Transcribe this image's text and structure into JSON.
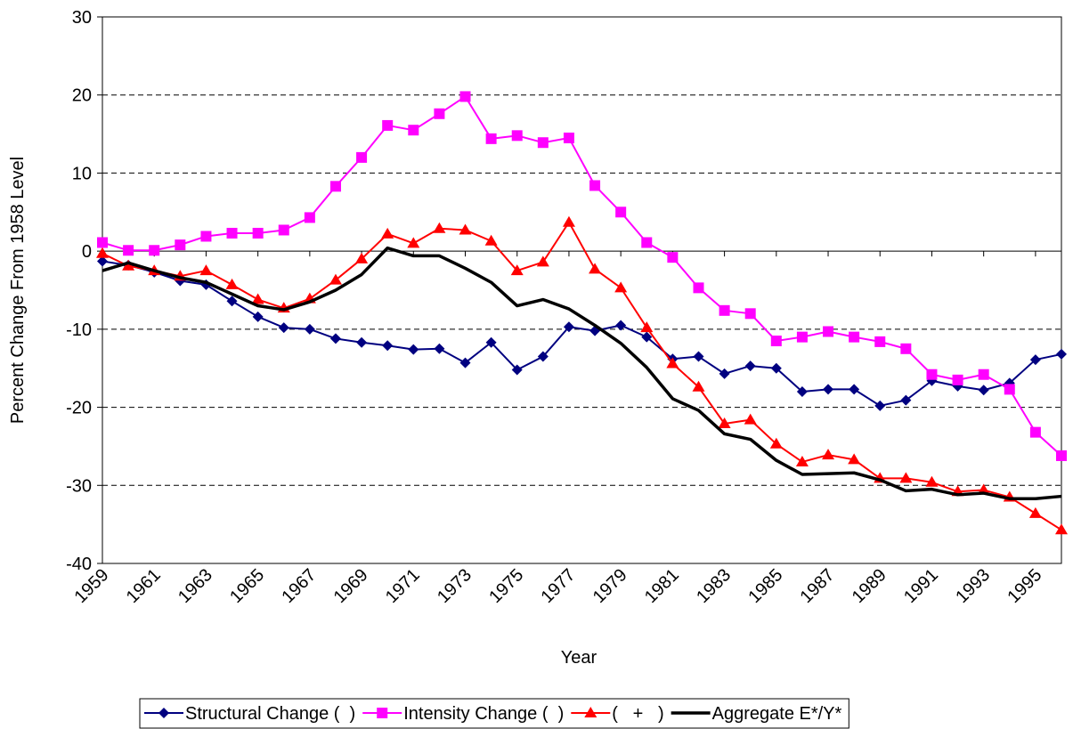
{
  "chart_data": {
    "type": "line",
    "x_label": "Year",
    "y_label": "Percent Change From 1958 Level",
    "x": [
      1959,
      1960,
      1961,
      1962,
      1963,
      1964,
      1965,
      1966,
      1967,
      1968,
      1969,
      1970,
      1971,
      1972,
      1973,
      1974,
      1975,
      1976,
      1977,
      1978,
      1979,
      1980,
      1981,
      1982,
      1983,
      1984,
      1985,
      1986,
      1987,
      1988,
      1989,
      1990,
      1991,
      1992,
      1993,
      1994,
      1995,
      1996
    ],
    "xlim": [
      1959,
      1996
    ],
    "xticks": [
      1959,
      1961,
      1963,
      1965,
      1967,
      1969,
      1971,
      1973,
      1975,
      1977,
      1979,
      1981,
      1983,
      1985,
      1987,
      1989,
      1991,
      1993,
      1995
    ],
    "ylim": [
      -40,
      30
    ],
    "yticks": [
      -40,
      -30,
      -20,
      -10,
      0,
      10,
      20,
      30
    ],
    "grid": true,
    "legend": "bottom",
    "series": [
      {
        "name": "Structural Change (  )",
        "color": "#000080",
        "marker": "diamond",
        "values": [
          -1.3,
          -1.8,
          -2.7,
          -3.8,
          -4.3,
          -6.4,
          -8.4,
          -9.8,
          -10.0,
          -11.2,
          -11.7,
          -12.1,
          -12.6,
          -12.5,
          -14.3,
          -11.7,
          -15.2,
          -13.5,
          -9.7,
          -10.2,
          -9.5,
          -11.0,
          -13.8,
          -13.5,
          -15.7,
          -14.7,
          -15.0,
          -18.0,
          -17.7,
          -17.7,
          -19.8,
          -19.1,
          -16.6,
          -17.3,
          -17.8,
          -16.9,
          -13.9,
          -13.2
        ]
      },
      {
        "name": "Intensity Change (  )",
        "color": "#ff00ff",
        "marker": "square",
        "values": [
          1.1,
          0.1,
          0.1,
          0.8,
          1.9,
          2.3,
          2.3,
          2.7,
          4.3,
          8.3,
          12.0,
          16.1,
          15.5,
          17.6,
          19.8,
          14.4,
          14.8,
          13.9,
          14.5,
          8.4,
          5.0,
          1.1,
          -0.8,
          -4.7,
          -7.6,
          -8.0,
          -11.5,
          -11.0,
          -10.3,
          -11.0,
          -11.6,
          -12.5,
          -15.8,
          -16.5,
          -15.8,
          -17.7,
          -23.2,
          -26.2
        ]
      },
      {
        "name": "(   +   )",
        "color": "#ff0000",
        "marker": "triangle",
        "values": [
          -0.3,
          -1.9,
          -2.5,
          -3.2,
          -2.5,
          -4.3,
          -6.2,
          -7.3,
          -6.1,
          -3.7,
          -1.0,
          2.2,
          1.0,
          2.9,
          2.7,
          1.3,
          -2.5,
          -1.4,
          3.7,
          -2.3,
          -4.7,
          -9.8,
          -14.4,
          -17.4,
          -22.1,
          -21.6,
          -24.7,
          -27.0,
          -26.1,
          -26.7,
          -29.1,
          -29.1,
          -29.6,
          -30.8,
          -30.6,
          -31.5,
          -33.6,
          -35.7
        ]
      },
      {
        "name": "Aggregate E*/Y*",
        "color": "#000000",
        "marker": "none",
        "values": [
          -2.5,
          -1.5,
          -2.5,
          -3.4,
          -4.0,
          -5.5,
          -7.0,
          -7.5,
          -6.5,
          -5.0,
          -3.0,
          0.4,
          -0.6,
          -0.6,
          -2.2,
          -4.0,
          -7.0,
          -6.2,
          -7.4,
          -9.5,
          -11.8,
          -14.9,
          -18.9,
          -20.4,
          -23.4,
          -24.1,
          -26.8,
          -28.6,
          -28.5,
          -28.4,
          -29.3,
          -30.7,
          -30.5,
          -31.2,
          -31.0,
          -31.7,
          -31.7,
          -31.4
        ]
      }
    ]
  }
}
